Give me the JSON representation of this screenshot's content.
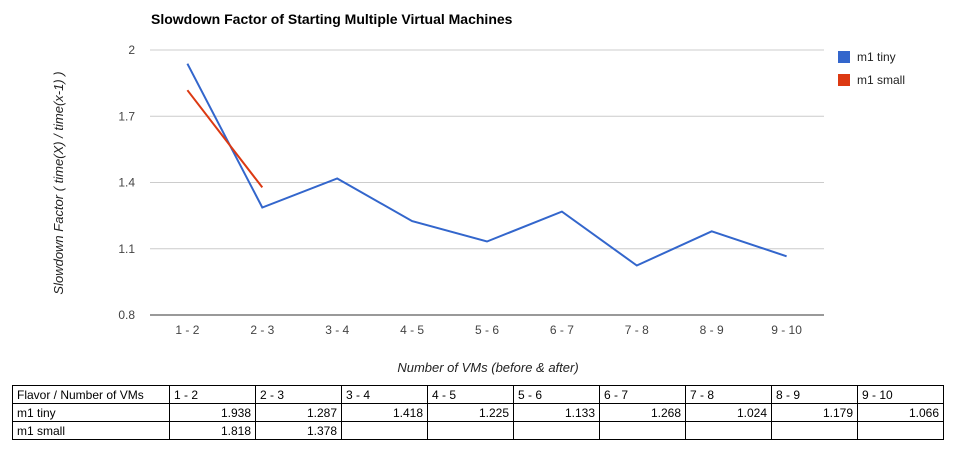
{
  "chart_data": {
    "type": "line",
    "title": "Slowdown Factor of Starting Multiple Virtual Machines",
    "xlabel": "Number of VMs (before & after)",
    "ylabel": "Slowdown Factor ( time(X) / time(x-1) )",
    "categories": [
      "1 - 2",
      "2 - 3",
      "3 - 4",
      "4 - 5",
      "5 - 6",
      "6 - 7",
      "7 - 8",
      "8 - 9",
      "9 - 10"
    ],
    "yticks": [
      "0.8",
      "1.1",
      "1.4",
      "1.7",
      "2"
    ],
    "ylim": [
      0.8,
      2.0
    ],
    "grid": true,
    "legend_position": "right",
    "series": [
      {
        "name": "m1 tiny",
        "color": "#3366cc",
        "values": [
          1.938,
          1.287,
          1.418,
          1.225,
          1.133,
          1.268,
          1.024,
          1.179,
          1.066
        ]
      },
      {
        "name": "m1 small",
        "color": "#dc3912",
        "values": [
          1.818,
          1.378,
          null,
          null,
          null,
          null,
          null,
          null,
          null
        ]
      }
    ]
  },
  "table": {
    "header": [
      "Flavor / Number of VMs",
      "1 - 2",
      "2 - 3",
      "3 - 4",
      "4 - 5",
      "5 - 6",
      "6 - 7",
      "7 - 8",
      "8 - 9",
      "9 - 10"
    ],
    "rows": [
      {
        "label": "m1 tiny",
        "cells": [
          "1.938",
          "1.287",
          "1.418",
          "1.225",
          "1.133",
          "1.268",
          "1.024",
          "1.179",
          "1.066"
        ]
      },
      {
        "label": "m1 small",
        "cells": [
          "1.818",
          "1.378",
          "",
          "",
          "",
          "",
          "",
          "",
          ""
        ]
      }
    ]
  }
}
